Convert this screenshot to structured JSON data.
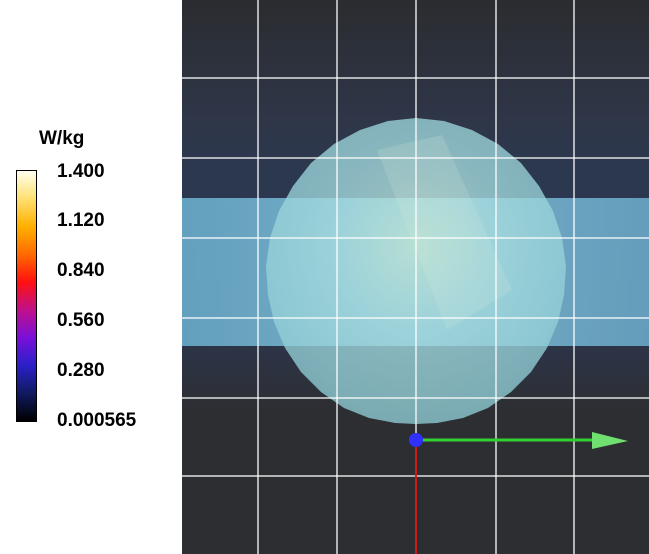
{
  "legend": {
    "unit": "W/kg",
    "ticks": [
      "1.400",
      "1.120",
      "0.840",
      "0.560",
      "0.280",
      "0.000565"
    ],
    "gradient_colors": [
      "#fffff0",
      "#ffe070",
      "#ffb000",
      "#ff6a00",
      "#ff1010",
      "#c0108a",
      "#7a10d8",
      "#2a20c8",
      "#101a60",
      "#000000"
    ]
  },
  "viewport": {
    "background_color": "#2d2e31",
    "grid_color": "#ffffff",
    "slab_color": "#7ecfe6",
    "sphere_color": "#9adbe0",
    "axis_x_color": "#30d030",
    "axis_y_color": "#d01818",
    "origin_color": "#3030ff"
  }
}
